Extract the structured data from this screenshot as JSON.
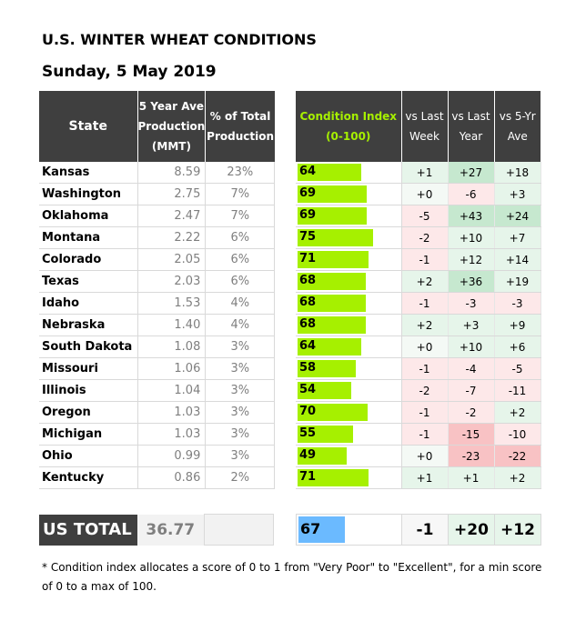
{
  "title": "U.S. WINTER WHEAT CONDITIONS",
  "subtitle": "Sunday, 5 May 2019",
  "headers": {
    "state": "State",
    "prod_line1": "5 Year Ave",
    "prod_line2": "Production",
    "prod_line3": "(MMT)",
    "pct_line1": "% of Total",
    "pct_line2": "Production",
    "ci_line1": "Condition Index",
    "ci_line2": "(0-100)",
    "lw_line1": "vs Last",
    "lw_line2": "Week",
    "ly_line1": "vs Last",
    "ly_line2": "Year",
    "fy_line1": "vs 5-Yr",
    "fy_line2": "Ave"
  },
  "colors": {
    "header_bg": "#3f3f3f",
    "ci_bar": "#a6f000",
    "total_bar": "#6bbaff",
    "pos_strong": "#c6e8cf",
    "pos_light": "#e6f5ea",
    "neg_strong": "#f8c2c4",
    "neg_light": "#fde8e9",
    "neutral": "#f4f9f5"
  },
  "chart_data": {
    "type": "table",
    "title": "U.S. WINTER WHEAT CONDITIONS",
    "subtitle": "Sunday, 5 May 2019",
    "ci_range": [
      0,
      100
    ],
    "rows": [
      {
        "state": "Kansas",
        "prod": "8.59",
        "pct": "23%",
        "ci": 64,
        "lw": "+1",
        "ly": "+27",
        "fy": "+18"
      },
      {
        "state": "Washington",
        "prod": "2.75",
        "pct": "7%",
        "ci": 69,
        "lw": "+0",
        "ly": "-6",
        "fy": "+3"
      },
      {
        "state": "Oklahoma",
        "prod": "2.47",
        "pct": "7%",
        "ci": 69,
        "lw": "-5",
        "ly": "+43",
        "fy": "+24"
      },
      {
        "state": "Montana",
        "prod": "2.22",
        "pct": "6%",
        "ci": 75,
        "lw": "-2",
        "ly": "+10",
        "fy": "+7"
      },
      {
        "state": "Colorado",
        "prod": "2.05",
        "pct": "6%",
        "ci": 71,
        "lw": "-1",
        "ly": "+12",
        "fy": "+14"
      },
      {
        "state": "Texas",
        "prod": "2.03",
        "pct": "6%",
        "ci": 68,
        "lw": "+2",
        "ly": "+36",
        "fy": "+19"
      },
      {
        "state": "Idaho",
        "prod": "1.53",
        "pct": "4%",
        "ci": 68,
        "lw": "-1",
        "ly": "-3",
        "fy": "-3"
      },
      {
        "state": "Nebraska",
        "prod": "1.40",
        "pct": "4%",
        "ci": 68,
        "lw": "+2",
        "ly": "+3",
        "fy": "+9"
      },
      {
        "state": "South Dakota",
        "prod": "1.08",
        "pct": "3%",
        "ci": 64,
        "lw": "+0",
        "ly": "+10",
        "fy": "+6"
      },
      {
        "state": "Missouri",
        "prod": "1.06",
        "pct": "3%",
        "ci": 58,
        "lw": "-1",
        "ly": "-4",
        "fy": "-5"
      },
      {
        "state": "Illinois",
        "prod": "1.04",
        "pct": "3%",
        "ci": 54,
        "lw": "-2",
        "ly": "-7",
        "fy": "-11"
      },
      {
        "state": "Oregon",
        "prod": "1.03",
        "pct": "3%",
        "ci": 70,
        "lw": "-1",
        "ly": "-2",
        "fy": "+2"
      },
      {
        "state": "Michigan",
        "prod": "1.03",
        "pct": "3%",
        "ci": 55,
        "lw": "-1",
        "ly": "-15",
        "fy": "-10"
      },
      {
        "state": "Ohio",
        "prod": "0.99",
        "pct": "3%",
        "ci": 49,
        "lw": "+0",
        "ly": "-23",
        "fy": "-22"
      },
      {
        "state": "Kentucky",
        "prod": "0.86",
        "pct": "2%",
        "ci": 71,
        "lw": "+1",
        "ly": "+1",
        "fy": "+2"
      }
    ],
    "total": {
      "label": "US TOTAL",
      "prod": "36.77",
      "ci": 67,
      "lw": "-1",
      "ly": "+20",
      "fy": "+12"
    }
  },
  "footnote": "* Condition index allocates a score of 0 to 1 from \"Very Poor\" to \"Excellent\", for a min score of 0 to a max of 100."
}
